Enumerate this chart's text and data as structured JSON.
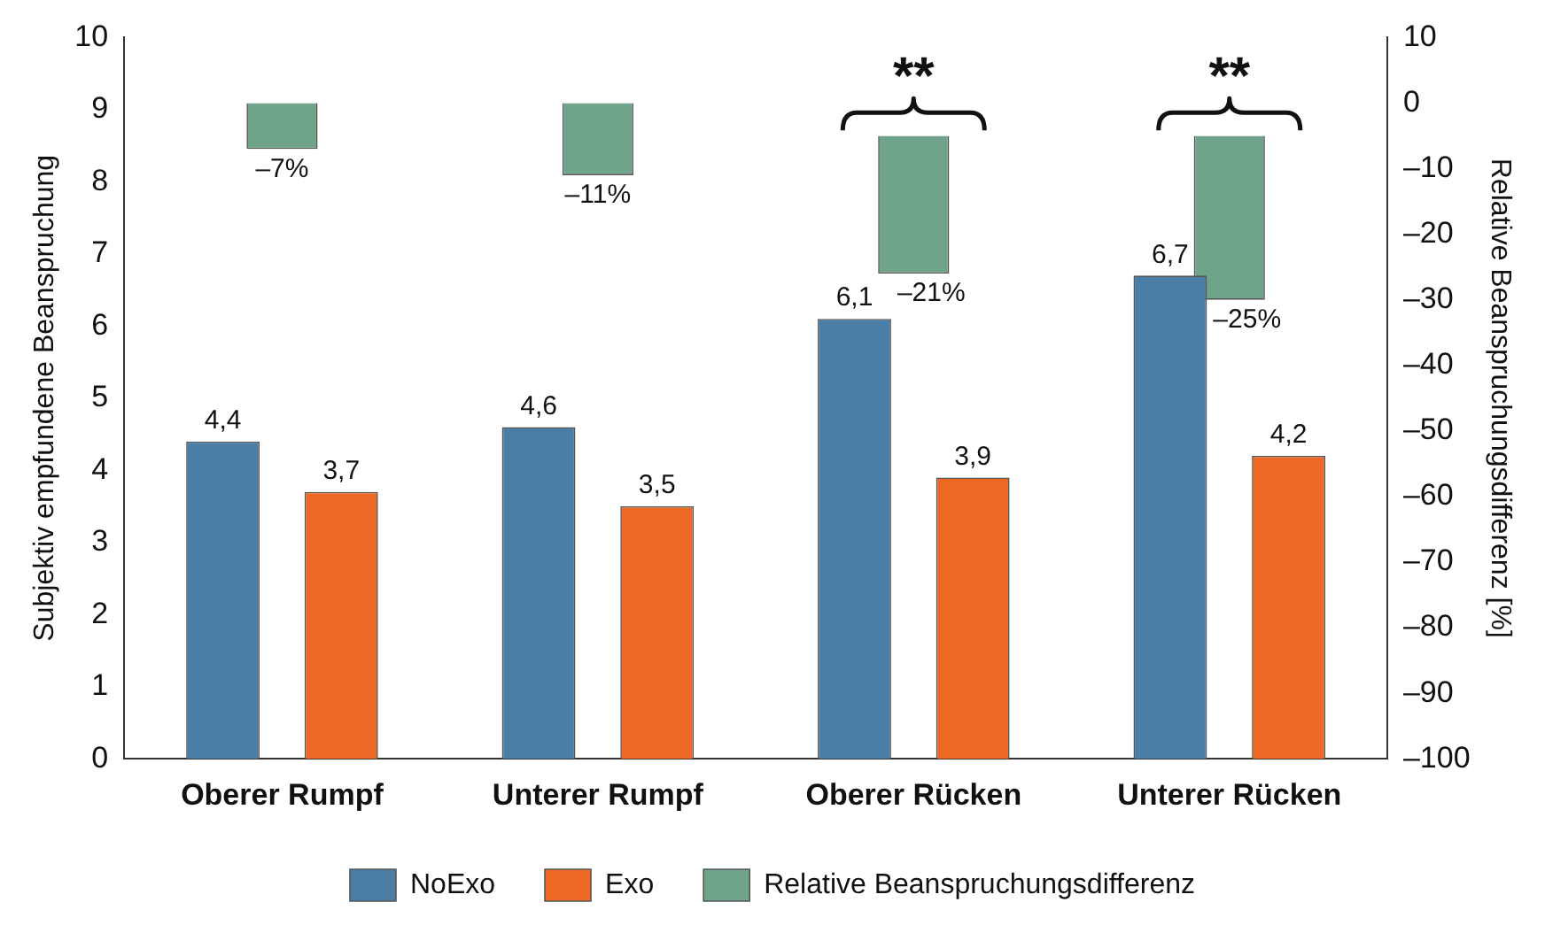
{
  "chart_data": {
    "type": "bar",
    "ylabel": "Subjektiv empfundene Beanspruchung",
    "y2label": "Relative Beanspruchungsdifferenz [%]",
    "categories": [
      "Oberer Rumpf",
      "Unterer Rumpf",
      "Oberer Rücken",
      "Unterer Rücken"
    ],
    "series": [
      {
        "name": "NoExo",
        "color": "#4a7ea6",
        "values": [
          4.4,
          4.6,
          6.1,
          6.7
        ],
        "value_labels": [
          "4,4",
          "4,6",
          "6,1",
          "6,7"
        ]
      },
      {
        "name": "Exo",
        "color": "#ee6a24",
        "values": [
          3.7,
          3.5,
          3.9,
          4.2
        ],
        "value_labels": [
          "3,7",
          "3,5",
          "3,9",
          "4,2"
        ]
      },
      {
        "name": "Relative Beanspruchungsdifferenz",
        "color": "#6fa38a",
        "axis": "y2",
        "base": [
          0,
          0,
          -5,
          -5
        ],
        "values": [
          -7,
          -11,
          -21,
          -25
        ],
        "value_labels": [
          "–7%",
          "–11%",
          "–21%",
          "–25%"
        ]
      }
    ],
    "ylim": [
      0,
      10
    ],
    "yticks": [
      0,
      1,
      2,
      3,
      4,
      5,
      6,
      7,
      8,
      9,
      10
    ],
    "y2lim": [
      -100,
      10
    ],
    "y2ticks": [
      10,
      0,
      {
        "value": -10,
        "label": "–10"
      },
      {
        "value": -20,
        "label": "–20"
      },
      {
        "value": -30,
        "label": "–30"
      },
      {
        "value": -40,
        "label": "–40"
      },
      {
        "value": -50,
        "label": "–50"
      },
      {
        "value": -60,
        "label": "–60"
      },
      {
        "value": -70,
        "label": "–70"
      },
      {
        "value": -80,
        "label": "–80"
      },
      {
        "value": -90,
        "label": "–90"
      },
      {
        "value": -100,
        "label": "–100"
      }
    ],
    "annotations": [
      "**",
      "**"
    ],
    "grid": false,
    "legend": "bottom"
  }
}
